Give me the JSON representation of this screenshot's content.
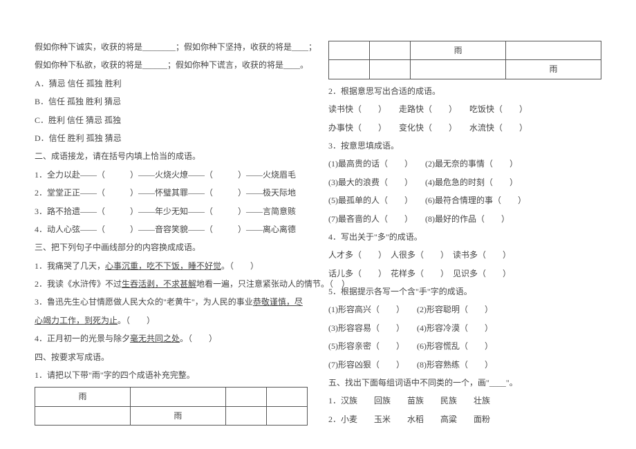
{
  "left": {
    "l1": "假如你种下诚实，收获的将是________；假如你种下坚持，收获的将是____；",
    "l2": "假如你种下私欲，收获的将是______；假如你种下谎言，收获的将是____。",
    "optA": "A．猜忌  信任  孤独  胜利",
    "optB": "B．信任  孤独  胜利  猜忌",
    "optC": "C．胜利  信任  猜忌  孤独",
    "optD": "D．信任  胜利  孤独  猜忌",
    "sec2": "二、成语接龙，请在括号内填上恰当的成语。",
    "s2_1": "1．全力以赴——（　　　）——火烧火燎——（　　　）——火烧眉毛",
    "s2_2": "2．堂堂正正——（　　　）——怀璧其罪——（　　　）——极天际地",
    "s2_3": "3．路不拾遗——（　　　）——年少无知——（　　　）——言简意赅",
    "s2_4": "4．动人心弦——（　　　）——音容笑貌——（　　　）——离心离德",
    "sec3": "三、把下列句子中画线部分的内容换成成语。",
    "s3_1a": "1．我痛哭了几天，",
    "s3_1b": "心事沉重，吃不下饭，睡不好觉",
    "s3_1c": "。（　　）",
    "s3_2a": "2．我读《水浒传》不过",
    "s3_2b": "生吞活剥，不求甚解",
    "s3_2c": "地看一遍，只注意紧张动人的情节。（　）",
    "s3_3a": "3．鲁迅先生心甘情愿做人民大众的\"老黄牛\"，为人民的事业",
    "s3_3b": "恭敬谨慎，尽心竭力工作，到死为止",
    "s3_3c": "。（　　）",
    "s3_4a": "4．正月初一的光景与除夕",
    "s3_4b": "毫无共同之处",
    "s3_4c": "。（　　）",
    "sec4": "四、按要求写成语。",
    "s4_1": "1．请把以下带\"雨\"字的四个成语补充完整。",
    "rain": "雨"
  },
  "right": {
    "rain": "雨",
    "r2": "2．根据意思写出合适的成语。",
    "r2_1": "读书快（　　）　　走路快（　　）　　吃饭快（　　）",
    "r2_2": "办事快（　　）　　变化快（　　）　　水流快（　　）",
    "r3": "3．按意思填成语。",
    "r3_1": "(1)最高贵的话（　　）　　(2)最无奈的事情（　　）",
    "r3_2": "(3)最大的浪费（　　）　　(4)最危急的时刻（　　）",
    "r3_3": "(5)最孤单的人（　　）　　(6)最符合情理的事（　　）",
    "r3_4": "(7)最吝啬的人（　　）　　(8)最好的作品（　　）",
    "r4": "4．写出关于\"多\"的成语。",
    "r4_1": "人才多（　　）　人很多（　　）　读书多（　　）",
    "r4_2": "话儿多（　　）　花样多（　　）　见识多（　　）",
    "r5": "5．根据提示各写一个含\"手\"字的成语。",
    "r5_1": "(1)形容高兴（　　）　　(2)形容聪明（　　）",
    "r5_2": "(3)形容容易（　　）　　(4)形容冷漠（　　）",
    "r5_3": "(5)形容亲密（　　）　　(6)形容慌乱（　　）",
    "r5_4": "(7)形容凶狠（　　）　　(8)形容熟练（　　）",
    "sec5": "五、找出下面每组词语中不同类的一个，画\"____\"。",
    "s5_1": "1．汉族　　回族　　苗族　　民族　　壮族",
    "s5_2": "2．小麦　　玉米　　水稻　　高粱　　面粉"
  }
}
